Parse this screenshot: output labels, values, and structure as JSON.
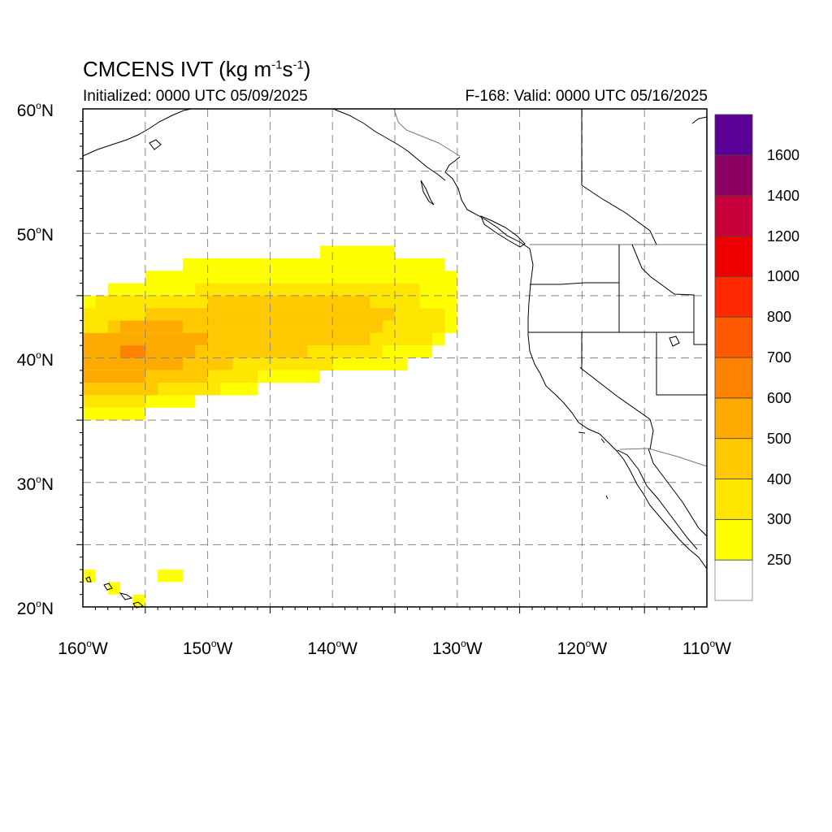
{
  "title": {
    "main": "CMCENS IVT (kg m",
    "exp1": "-1",
    "mid": "s",
    "exp2": "-1",
    "close": ")"
  },
  "subtitle_left": "Initialized: 0000 UTC 05/09/2025",
  "subtitle_right": "F-168: Valid: 0000 UTC 05/16/2025",
  "map": {
    "projection": "cylindrical equidistant",
    "lon_range": [
      -160,
      -110
    ],
    "lat_range": [
      20,
      60
    ],
    "gridlines": "dashed",
    "lat_ticks": [
      {
        "num": "20",
        "hemi": "N",
        "lat": 20
      },
      {
        "num": "30",
        "hemi": "N",
        "lat": 30
      },
      {
        "num": "40",
        "hemi": "N",
        "lat": 40
      },
      {
        "num": "50",
        "hemi": "N",
        "lat": 50
      },
      {
        "num": "60",
        "hemi": "N",
        "lat": 60
      }
    ],
    "lon_ticks": [
      {
        "num": "160",
        "hemi": "W",
        "lon": -160
      },
      {
        "num": "150",
        "hemi": "W",
        "lon": -150
      },
      {
        "num": "140",
        "hemi": "W",
        "lon": -140
      },
      {
        "num": "130",
        "hemi": "W",
        "lon": -130
      },
      {
        "num": "120",
        "hemi": "W",
        "lon": -120
      },
      {
        "num": "110",
        "hemi": "W",
        "lon": -110
      }
    ],
    "ivt_field": {
      "units": "kg m-1 s-1",
      "cell_deg": 1,
      "rows": [
        {
          "lat": 48,
          "spans": [
            [
              -141,
              -135,
              250
            ]
          ]
        },
        {
          "lat": 47,
          "spans": [
            [
              -152,
              -131,
              250
            ]
          ]
        },
        {
          "lat": 46,
          "spans": [
            [
              -155,
              -130,
              250
            ]
          ]
        },
        {
          "lat": 45,
          "spans": [
            [
              -158,
              -130,
              250
            ],
            [
              -151,
              -133,
              300
            ]
          ]
        },
        {
          "lat": 44,
          "spans": [
            [
              -160,
              -130,
              250
            ],
            [
              -159,
              -133,
              300
            ],
            [
              -150,
              -137,
              400
            ]
          ]
        },
        {
          "lat": 43,
          "spans": [
            [
              -160,
              -130,
              250
            ],
            [
              -160,
              -131,
              300
            ],
            [
              -155,
              -135,
              400
            ]
          ]
        },
        {
          "lat": 42,
          "spans": [
            [
              -160,
              -130,
              250
            ],
            [
              -160,
              -131,
              300
            ],
            [
              -158,
              -136,
              400
            ],
            [
              -157,
              -152,
              500
            ]
          ]
        },
        {
          "lat": 41,
          "spans": [
            [
              -160,
              -131,
              250
            ],
            [
              -160,
              -132,
              300
            ],
            [
              -160,
              -137,
              400
            ],
            [
              -160,
              -150,
              500
            ]
          ]
        },
        {
          "lat": 40,
          "spans": [
            [
              -160,
              -132,
              250
            ],
            [
              -160,
              -136,
              300
            ],
            [
              -160,
              -142,
              400
            ],
            [
              -160,
              -151,
              500
            ],
            [
              -157,
              -155,
              600
            ]
          ]
        },
        {
          "lat": 39,
          "spans": [
            [
              -160,
              -134,
              250
            ],
            [
              -160,
              -140,
              300
            ],
            [
              -160,
              -148,
              400
            ],
            [
              -160,
              -152,
              500
            ]
          ]
        },
        {
          "lat": 38,
          "spans": [
            [
              -160,
              -141,
              250
            ],
            [
              -160,
              -146,
              300
            ],
            [
              -160,
              -150,
              400
            ],
            [
              -160,
              -155,
              500
            ]
          ]
        },
        {
          "lat": 37,
          "spans": [
            [
              -160,
              -146,
              250
            ],
            [
              -160,
              -149,
              300
            ],
            [
              -160,
              -154,
              400
            ]
          ]
        },
        {
          "lat": 36,
          "spans": [
            [
              -160,
              -151,
              250
            ],
            [
              -160,
              -155,
              300
            ]
          ]
        },
        {
          "lat": 35,
          "spans": [
            [
              -160,
              -155,
              250
            ]
          ]
        },
        {
          "lat": 22,
          "spans": [
            [
              -160,
              -159,
              250
            ],
            [
              -154,
              -152,
              250
            ]
          ]
        },
        {
          "lat": 21,
          "spans": [
            [
              -158,
              -157,
              250
            ]
          ]
        },
        {
          "lat": 20,
          "spans": [
            [
              -156,
              -155,
              250
            ]
          ]
        }
      ]
    }
  },
  "colorbar": {
    "levels": [
      {
        "label": "250",
        "color": "#ffff00"
      },
      {
        "label": "300",
        "color": "#ffe600"
      },
      {
        "label": "400",
        "color": "#ffc800"
      },
      {
        "label": "500",
        "color": "#ffaa00"
      },
      {
        "label": "600",
        "color": "#ff8200"
      },
      {
        "label": "700",
        "color": "#ff5a00"
      },
      {
        "label": "800",
        "color": "#ff2800"
      },
      {
        "label": "1000",
        "color": "#ee0000"
      },
      {
        "label": "1200",
        "color": "#c8003c"
      },
      {
        "label": "1400",
        "color": "#8c0064"
      },
      {
        "label": "1600",
        "color": "#5a0096"
      }
    ],
    "below_color": "#ffffff"
  }
}
